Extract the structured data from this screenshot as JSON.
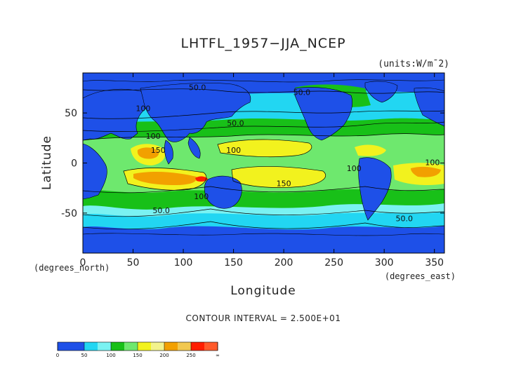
{
  "chart_data": {
    "type": "heatmap",
    "title": "LHTFL_1957−JJA_NCEP",
    "units": "(units:W/m¯2)",
    "xlabel": "Longitude",
    "ylabel": "Latitude",
    "x_unit": "(degrees_east)",
    "y_unit": "(degrees_north)",
    "xlim": [
      0,
      360
    ],
    "ylim": [
      -90,
      90
    ],
    "x_ticks": [
      0,
      50,
      100,
      150,
      200,
      250,
      300,
      350
    ],
    "y_ticks": [
      -50,
      0,
      50
    ],
    "contour_interval": "CONTOUR INTERVAL = 2.500E+01",
    "contour_labels": [
      {
        "text": "50.0",
        "lon": 114,
        "lat": 73
      },
      {
        "text": "100",
        "lon": 60,
        "lat": 52
      },
      {
        "text": "50.0",
        "lon": 152,
        "lat": 37
      },
      {
        "text": "100",
        "lon": 70,
        "lat": 24
      },
      {
        "text": "150",
        "lon": 75,
        "lat": 10
      },
      {
        "text": "100",
        "lon": 150,
        "lat": 10
      },
      {
        "text": "150",
        "lon": 200,
        "lat": -23
      },
      {
        "text": "100",
        "lon": 118,
        "lat": -36
      },
      {
        "text": "50.0",
        "lon": 78,
        "lat": -50
      },
      {
        "text": "100",
        "lon": 270,
        "lat": -8
      },
      {
        "text": "100",
        "lon": 348,
        "lat": -2
      },
      {
        "text": "50.0",
        "lon": 320,
        "lat": -58
      },
      {
        "text": "50.0",
        "lon": 218,
        "lat": 68
      }
    ],
    "colorbar": {
      "min": 0,
      "max": "∞",
      "levels": [
        0,
        25,
        50,
        75,
        100,
        125,
        150,
        175,
        200,
        225,
        250,
        275,
        300
      ],
      "labels": [
        "0",
        "50",
        "100",
        "150",
        "200",
        "250",
        "∞"
      ],
      "colors": [
        "#1e50e8",
        "#1e50e8",
        "#22d6f2",
        "#7af2f2",
        "#18c018",
        "#6ee86e",
        "#f2f21e",
        "#f2f28c",
        "#f2a000",
        "#f2c850",
        "#ff1e00",
        "#ff5a2a"
      ]
    },
    "background_color": "#1e50e8"
  }
}
